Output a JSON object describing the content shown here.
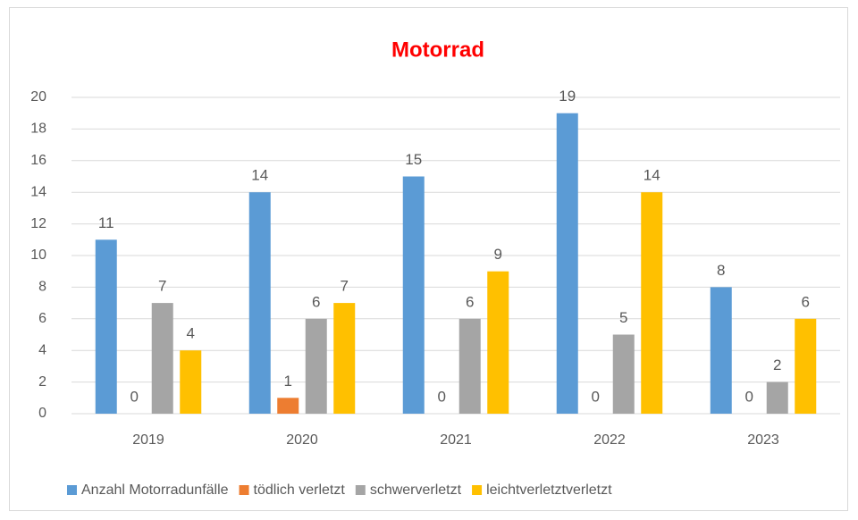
{
  "chart_data": {
    "type": "bar",
    "title": "Motorrad",
    "categories": [
      "2019",
      "2020",
      "2021",
      "2022",
      "2023"
    ],
    "series": [
      {
        "name": "Anzahl Motorradunfälle",
        "color": "#5b9bd5",
        "values": [
          11,
          14,
          15,
          19,
          8
        ]
      },
      {
        "name": "tödlich verletzt",
        "color": "#ed7d31",
        "values": [
          0,
          1,
          0,
          0,
          0
        ]
      },
      {
        "name": "schwerverletzt",
        "color": "#a5a5a5",
        "values": [
          7,
          6,
          6,
          5,
          2
        ]
      },
      {
        "name": "leichtverletztverletzt",
        "color": "#ffc000",
        "values": [
          4,
          7,
          9,
          14,
          6
        ]
      }
    ],
    "ylim": [
      0,
      20
    ],
    "yticks": [
      0,
      2,
      4,
      6,
      8,
      10,
      12,
      14,
      16,
      18,
      20
    ],
    "grid": true,
    "legend": "bottom"
  }
}
